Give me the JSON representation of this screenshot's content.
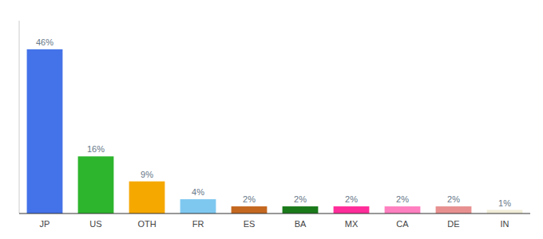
{
  "chart_data": {
    "type": "bar",
    "categories": [
      "JP",
      "US",
      "OTH",
      "FR",
      "ES",
      "BA",
      "MX",
      "CA",
      "DE",
      "IN"
    ],
    "values": [
      46,
      16,
      9,
      4,
      2,
      2,
      2,
      2,
      2,
      1
    ],
    "value_labels": [
      "46%",
      "16%",
      "9%",
      "4%",
      "2%",
      "2%",
      "2%",
      "2%",
      "2%",
      "1%"
    ],
    "colors": [
      "#4472e8",
      "#2db52d",
      "#f5a800",
      "#7ec8f0",
      "#c46820",
      "#1a7a1a",
      "#ff2d9a",
      "#ff80c0",
      "#e89090",
      "#f0edd8"
    ],
    "ylim": [
      0,
      54
    ],
    "data_labels": true,
    "tick_labels": "x",
    "grid": false
  }
}
